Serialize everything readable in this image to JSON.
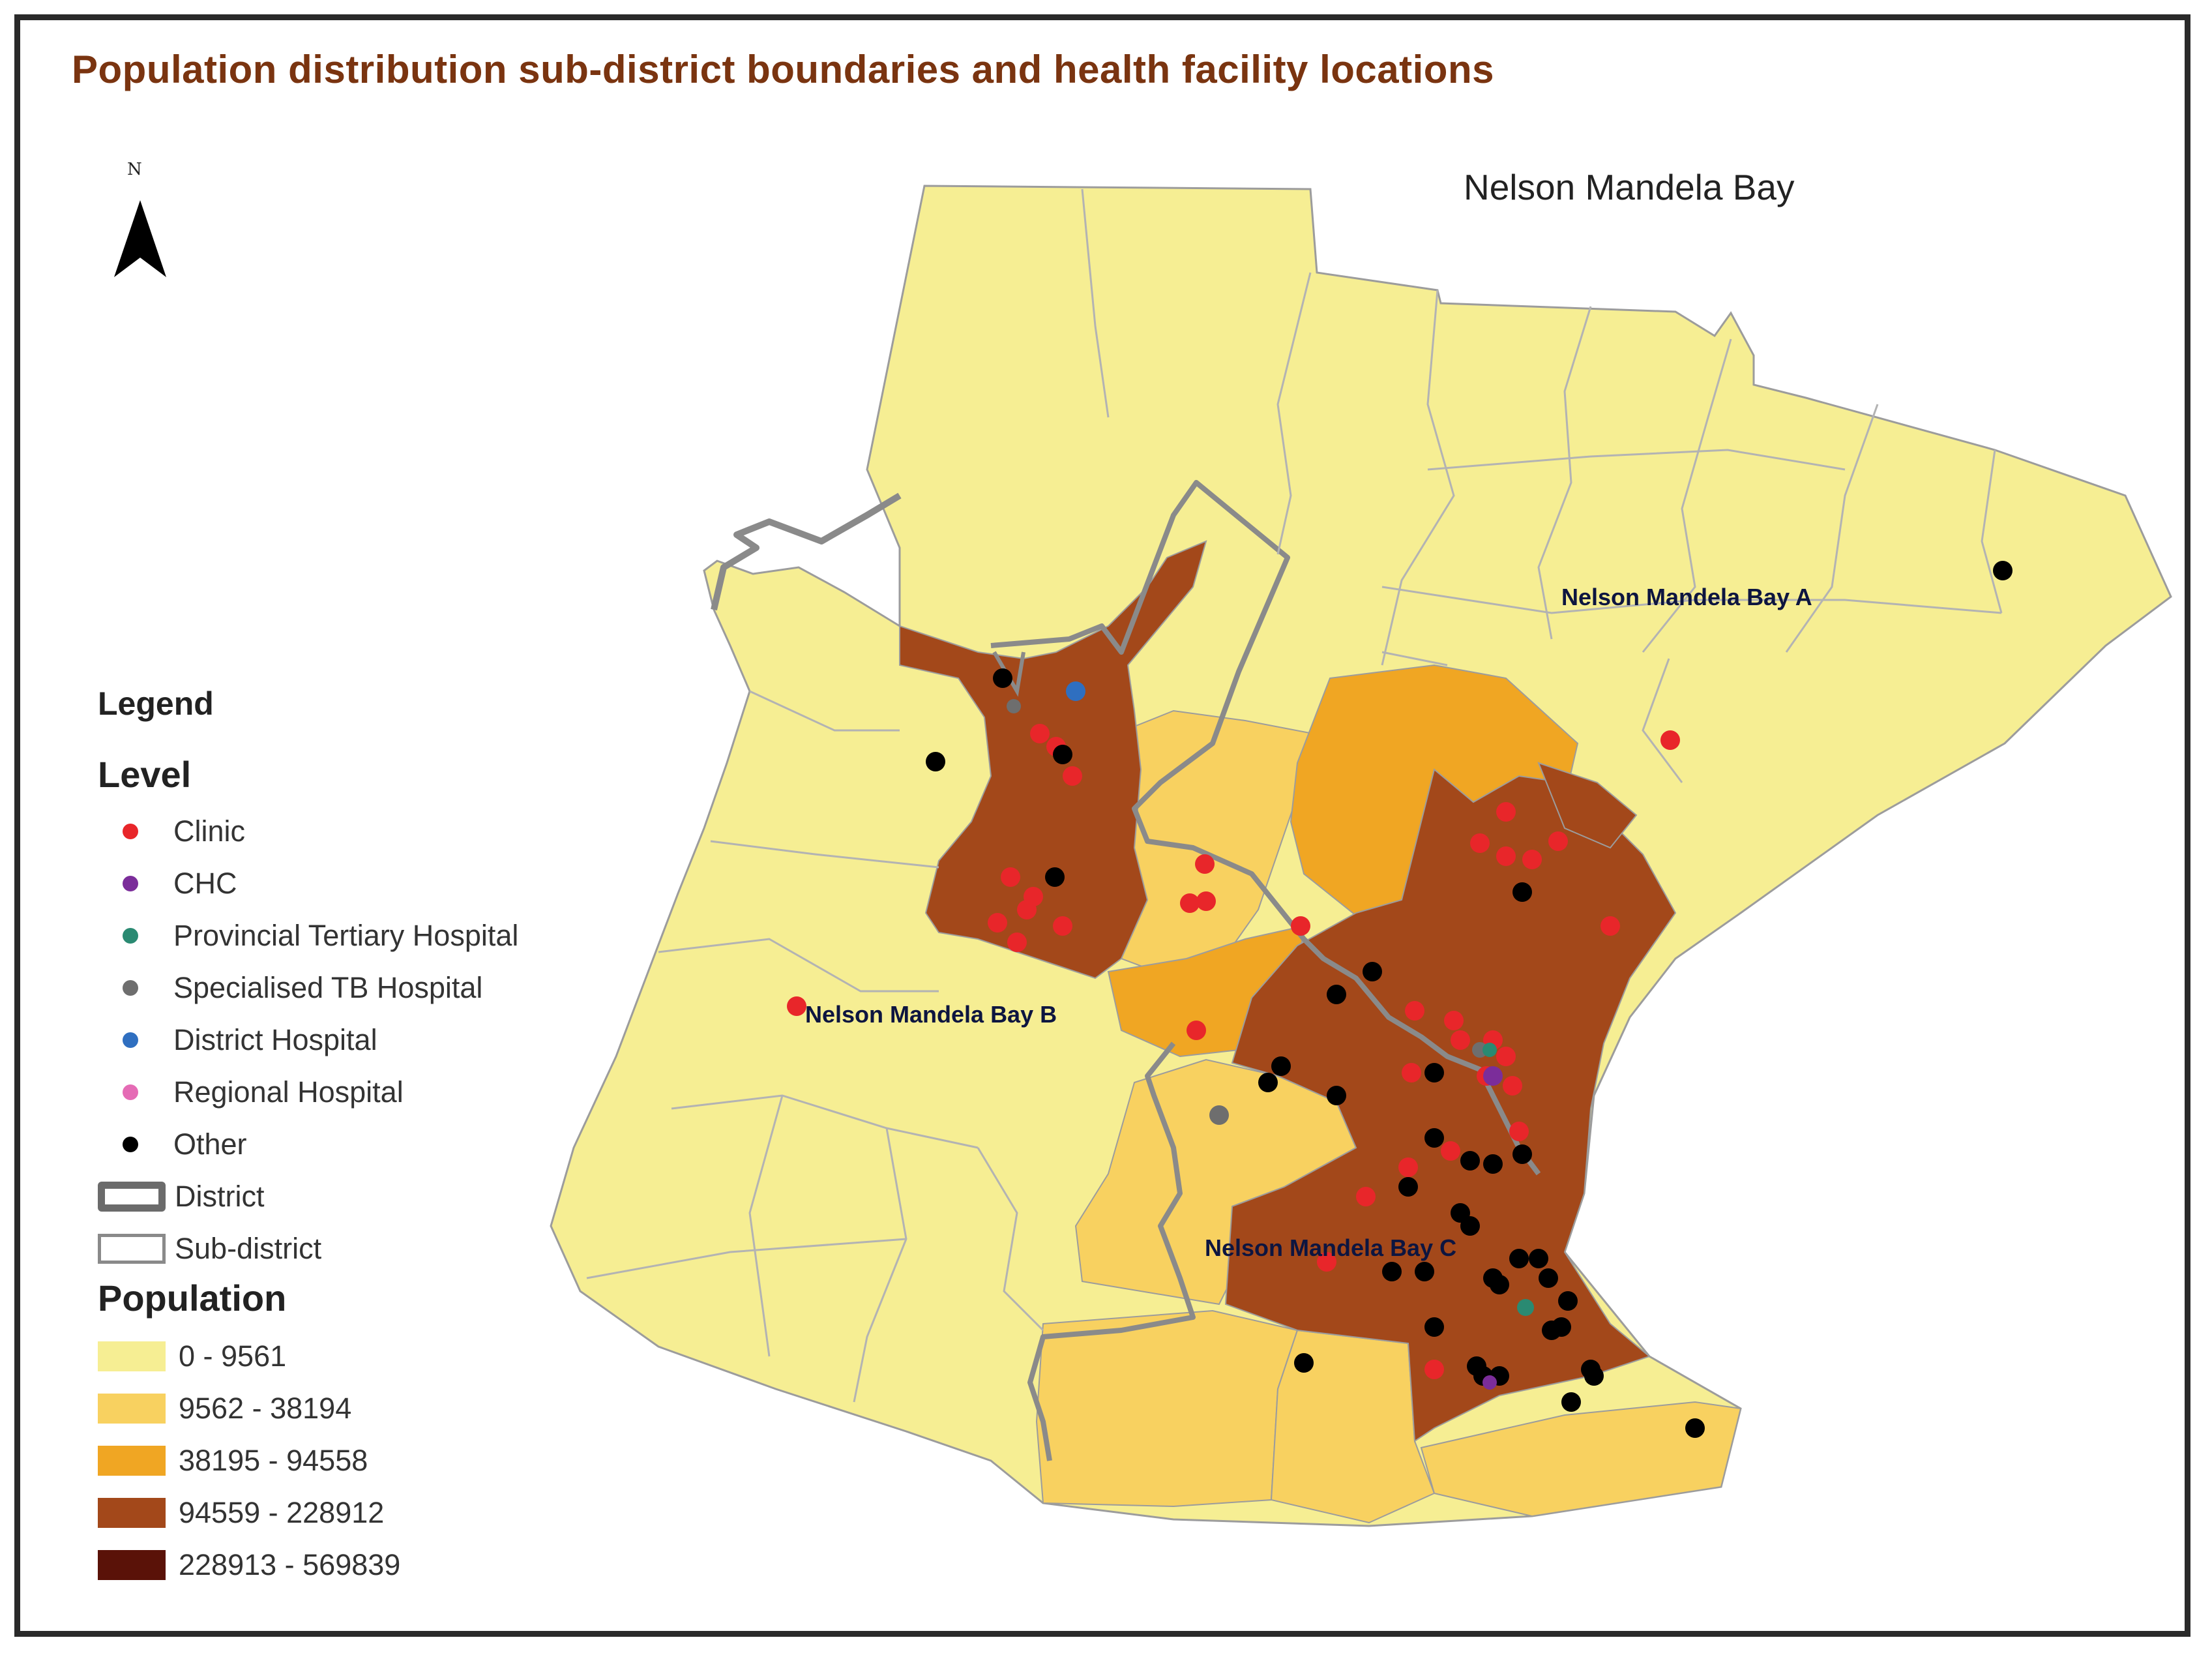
{
  "title": "Population distribution sub-district boundaries and health facility locations",
  "north_arrow": {
    "icon": "north-arrow-icon",
    "letter": "N"
  },
  "region_label": "Nelson Mandela Bay",
  "subdistricts": [
    {
      "id": "a",
      "label": "Nelson Mandela Bay A"
    },
    {
      "id": "b",
      "label": "Nelson Mandela Bay B"
    },
    {
      "id": "c",
      "label": "Nelson Mandela Bay C"
    }
  ],
  "legend": {
    "title": "Legend",
    "level_title": "Level",
    "levels": [
      {
        "label": "Clinic",
        "color": "#e8262a"
      },
      {
        "label": "CHC",
        "color": "#7b2d9a"
      },
      {
        "label": "Provincial Tertiary Hospital",
        "color": "#2a8a72"
      },
      {
        "label": "Specialised TB Hospital",
        "color": "#6e6e6e"
      },
      {
        "label": "District Hospital",
        "color": "#2f6fc0"
      },
      {
        "label": "Regional Hospital",
        "color": "#e56bb5"
      },
      {
        "label": "Other",
        "color": "#000000"
      }
    ],
    "boundaries": [
      {
        "label": "District",
        "style": "thick-grey-outline"
      },
      {
        "label": "Sub-district",
        "style": "thin-grey-outline"
      }
    ],
    "population_title": "Population",
    "population_classes": [
      {
        "label": "0 - 9561",
        "color": "#f6ee93"
      },
      {
        "label": "9562 - 38194",
        "color": "#f8d160"
      },
      {
        "label": "38195 - 94558",
        "color": "#f0a623"
      },
      {
        "label": "94559 - 228912",
        "color": "#a3481a"
      },
      {
        "label": "228913 - 569839",
        "color": "#5a1208"
      }
    ]
  }
}
